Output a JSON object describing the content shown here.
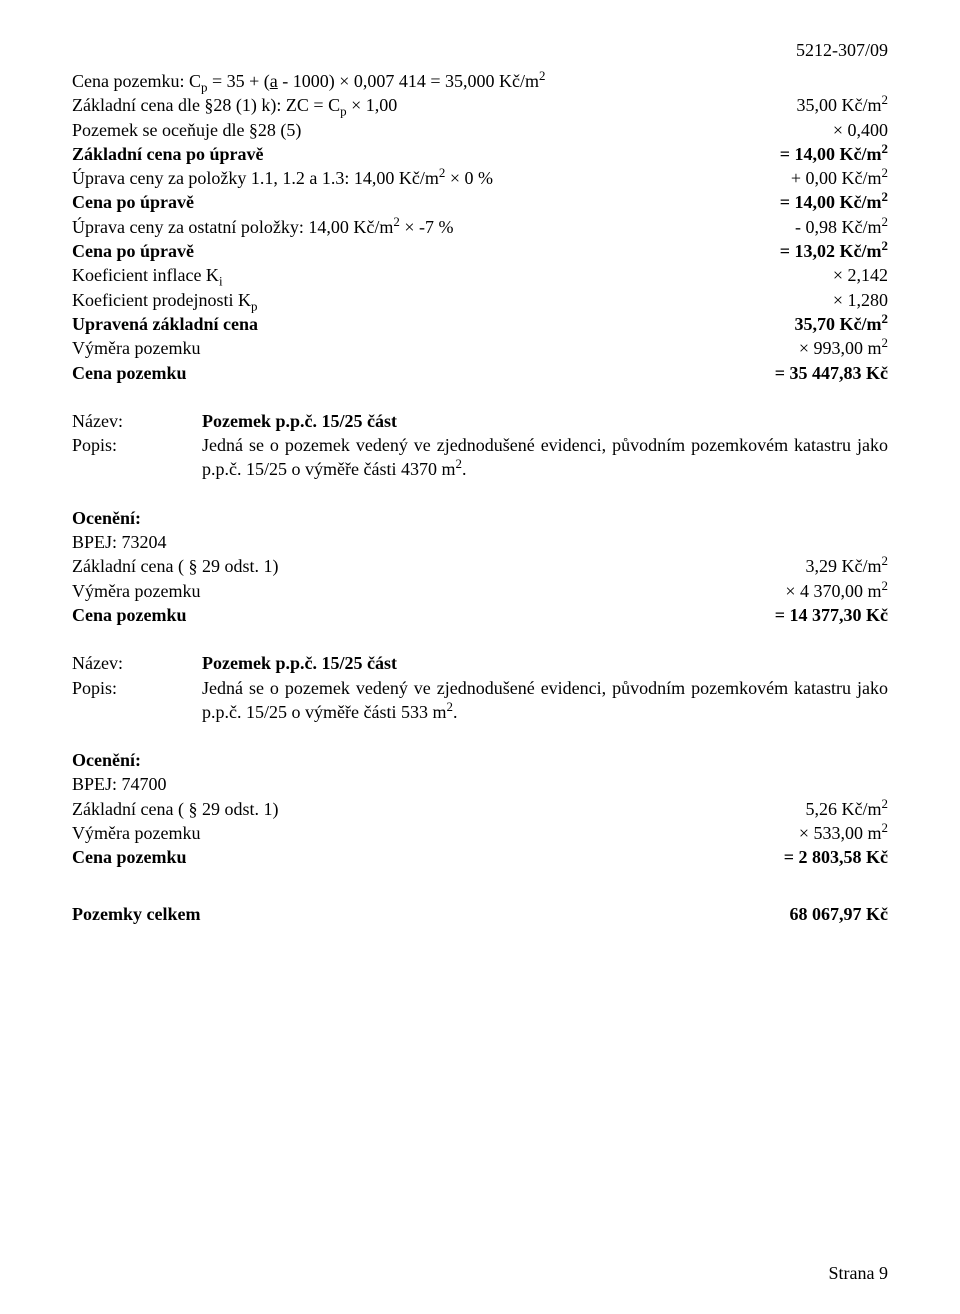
{
  "header_code": "5212-307/09",
  "block1": {
    "l1_left": "Cena pozemku: C",
    "l1_sub": "p",
    "l1_mid": " = 35 + (",
    "l1_a": "a",
    "l1_rest": " - 1000) × 0,007 414 = 35,000 Kč/m",
    "l1_sup": "2",
    "l2_left_a": "Základní cena dle §28 (1) k): ZC = C",
    "l2_sub": "p",
    "l2_left_b": " × 1,00",
    "l2_right": "35,00 Kč/m",
    "l2_sup": "2",
    "l3_left": "Pozemek se oceňuje dle §28 (5)",
    "l3_right": "× 0,400",
    "l4_left": "Základní cena po úpravě",
    "l4_right": "= 14,00 Kč/m",
    "l4_sup": "2",
    "l5_left_a": "Úprava ceny za položky 1.1, 1.2 a 1.3: 14,00 Kč/m",
    "l5_sup1": "2",
    "l5_left_b": " × 0 %",
    "l5_right": "+ 0,00 Kč/m",
    "l5_sup2": "2",
    "l6_left": "Cena po úpravě",
    "l6_right": "= 14,00 Kč/m",
    "l6_sup": "2",
    "l7_left_a": "Úprava ceny za ostatní položky: 14,00 Kč/m",
    "l7_sup1": "2",
    "l7_left_b": " × -7 %",
    "l7_right": "- 0,98 Kč/m",
    "l7_sup2": "2",
    "l8_left": "Cena po úpravě",
    "l8_right": "= 13,02 Kč/m",
    "l8_sup": "2",
    "l9_left": "Koeficient inflace K",
    "l9_sub": "i",
    "l9_right": "× 2,142",
    "l10_left": "Koeficient prodejnosti K",
    "l10_sub": "p",
    "l10_right": "× 1,280",
    "l11_left": "Upravená základní cena",
    "l11_right": "35,70 Kč/m",
    "l11_sup": "2",
    "l12_left": "Výměra pozemku",
    "l12_right": "× 993,00 m",
    "l12_sup": "2",
    "l13_left": "Cena pozemku",
    "l13_right": "= 35 447,83 Kč"
  },
  "block2": {
    "nazev_lbl": "Název:",
    "nazev_val": "Pozemek p.p.č. 15/25 část",
    "popis_lbl": "Popis:",
    "popis_val_a": "Jedná se o pozemek vedený ve zjednodušené evidenci, původním pozemkovém katastru jako p.p.č. 15/25 o výměře části 4370 m",
    "popis_sup": "2",
    "popis_val_b": ".",
    "oceneni": "Ocenění:",
    "bpej": "BPEJ: 73204",
    "zc_left": "Základní cena ( § 29 odst. 1)",
    "zc_right": "3,29 Kč/m",
    "zc_sup": "2",
    "vym_left": "Výměra pozemku",
    "vym_right": "× 4 370,00 m",
    "vym_sup": "2",
    "cena_left": "Cena pozemku",
    "cena_right": "= 14 377,30 Kč"
  },
  "block3": {
    "nazev_lbl": "Název:",
    "nazev_val": "Pozemek p.p.č. 15/25 část",
    "popis_lbl": "Popis:",
    "popis_val_a": "Jedná se o pozemek vedený ve zjednodušené evidenci, původním pozemkovém katastru jako p.p.č. 15/25 o výměře části 533 m",
    "popis_sup": "2",
    "popis_val_b": ".",
    "oceneni": "Ocenění:",
    "bpej": "BPEJ: 74700",
    "zc_left": "Základní cena ( § 29 odst. 1)",
    "zc_right": "5,26 Kč/m",
    "zc_sup": "2",
    "vym_left": "Výměra pozemku",
    "vym_right": "× 533,00 m",
    "vym_sup": "2",
    "cena_left": "Cena pozemku",
    "cena_right": "= 2 803,58 Kč"
  },
  "total": {
    "left": "Pozemky celkem",
    "right": "68 067,97 Kč"
  },
  "footer": "Strana  9"
}
